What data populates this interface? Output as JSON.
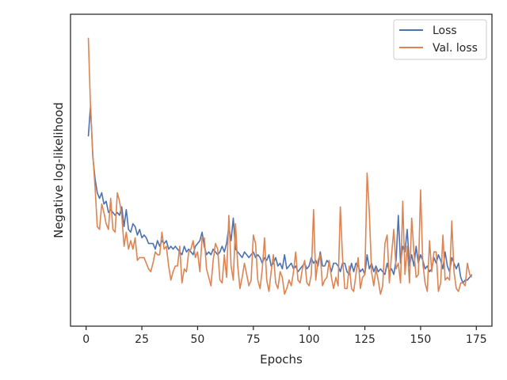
{
  "chart_data": {
    "type": "line",
    "xlabel": "Epochs",
    "ylabel": "Negative log-likelihood",
    "xlim": [
      -7,
      182
    ],
    "ylim": [
      0,
      100
    ],
    "xticks": [
      0,
      25,
      50,
      75,
      100,
      125,
      150,
      175
    ],
    "y_tick_labels": false,
    "grid": false,
    "legend_position": "top-right",
    "series": [
      {
        "name": "Loss",
        "color": "#4c72b0",
        "x": [
          1,
          2,
          3,
          4,
          5,
          6,
          7,
          8,
          9,
          10,
          11,
          12,
          13,
          14,
          15,
          16,
          17,
          18,
          19,
          20,
          21,
          22,
          23,
          24,
          25,
          26,
          27,
          28,
          29,
          30,
          31,
          32,
          33,
          34,
          35,
          36,
          37,
          38,
          39,
          40,
          41,
          42,
          43,
          44,
          45,
          46,
          47,
          48,
          49,
          50,
          51,
          52,
          53,
          54,
          55,
          56,
          57,
          58,
          59,
          60,
          61,
          62,
          63,
          64,
          65,
          66,
          67,
          68,
          69,
          70,
          71,
          72,
          73,
          74,
          75,
          76,
          77,
          78,
          79,
          80,
          81,
          82,
          83,
          84,
          85,
          86,
          87,
          88,
          89,
          90,
          91,
          92,
          93,
          94,
          95,
          96,
          97,
          98,
          99,
          100,
          101,
          102,
          103,
          104,
          105,
          106,
          107,
          108,
          109,
          110,
          111,
          112,
          113,
          114,
          115,
          116,
          117,
          118,
          119,
          120,
          121,
          122,
          123,
          124,
          125,
          126,
          127,
          128,
          129,
          130,
          131,
          132,
          133,
          134,
          135,
          136,
          137,
          138,
          139,
          140,
          141,
          142,
          143,
          144,
          145,
          146,
          147,
          148,
          149,
          150,
          151,
          152,
          153,
          154,
          155,
          156,
          157,
          158,
          159,
          160,
          161,
          162,
          163,
          164,
          165,
          166,
          167,
          168,
          169,
          170,
          171,
          172,
          173
        ],
        "y": [
          62,
          73,
          55,
          47,
          42,
          40,
          42,
          38,
          39,
          35,
          36,
          35,
          34,
          35,
          34,
          37,
          30,
          36,
          29,
          28,
          31,
          30,
          27,
          29,
          26,
          27,
          26,
          24,
          24,
          24,
          22,
          25,
          23,
          25,
          24,
          25,
          22,
          23,
          22,
          23,
          22,
          21,
          20,
          23,
          21,
          22,
          21,
          20,
          23,
          24,
          25,
          28,
          23,
          20,
          21,
          20,
          22,
          21,
          20,
          21,
          23,
          21,
          24,
          30,
          25,
          33,
          22,
          21,
          20,
          19,
          21,
          20,
          19,
          20,
          21,
          19,
          20,
          19,
          17,
          19,
          18,
          20,
          16,
          17,
          19,
          16,
          17,
          15,
          20,
          15,
          16,
          17,
          15,
          16,
          14,
          15,
          16,
          17,
          15,
          16,
          19,
          17,
          18,
          16,
          21,
          16,
          16,
          18,
          17,
          14,
          17,
          17,
          16,
          14,
          17,
          17,
          14,
          13,
          17,
          14,
          17,
          16,
          14,
          15,
          13,
          20,
          15,
          17,
          14,
          16,
          14,
          15,
          14,
          13,
          17,
          14,
          15,
          13,
          18,
          34,
          17,
          23,
          21,
          29,
          16,
          20,
          16,
          23,
          17,
          20,
          18,
          15,
          16,
          14,
          15,
          19,
          17,
          20,
          18,
          15,
          21,
          16,
          14,
          19,
          17,
          15,
          17,
          12,
          10,
          11,
          11,
          12,
          13
        ]
      },
      {
        "name": "Val. loss",
        "color": "#dd8452",
        "x": [
          1,
          2,
          3,
          4,
          5,
          6,
          7,
          8,
          9,
          10,
          11,
          12,
          13,
          14,
          15,
          16,
          17,
          18,
          19,
          20,
          21,
          22,
          23,
          24,
          25,
          26,
          27,
          28,
          29,
          30,
          31,
          32,
          33,
          34,
          35,
          36,
          37,
          38,
          39,
          40,
          41,
          42,
          43,
          44,
          45,
          46,
          47,
          48,
          49,
          50,
          51,
          52,
          53,
          54,
          55,
          56,
          57,
          58,
          59,
          60,
          61,
          62,
          63,
          64,
          65,
          66,
          67,
          68,
          69,
          70,
          71,
          72,
          73,
          74,
          75,
          76,
          77,
          78,
          79,
          80,
          81,
          82,
          83,
          84,
          85,
          86,
          87,
          88,
          89,
          90,
          91,
          92,
          93,
          94,
          95,
          96,
          97,
          98,
          99,
          100,
          101,
          102,
          103,
          104,
          105,
          106,
          107,
          108,
          109,
          110,
          111,
          112,
          113,
          114,
          115,
          116,
          117,
          118,
          119,
          120,
          121,
          122,
          123,
          124,
          125,
          126,
          127,
          128,
          129,
          130,
          131,
          132,
          133,
          134,
          135,
          136,
          137,
          138,
          139,
          140,
          141,
          142,
          143,
          144,
          145,
          146,
          147,
          148,
          149,
          150,
          151,
          152,
          153,
          154,
          155,
          156,
          157,
          158,
          159,
          160,
          161,
          162,
          163,
          164,
          165,
          166,
          167,
          168,
          169,
          170,
          171,
          172,
          173
        ],
        "y": [
          97,
          72,
          56,
          44,
          30,
          29,
          38,
          35,
          31,
          29,
          40,
          29,
          28,
          42,
          39,
          34,
          23,
          28,
          22,
          25,
          22,
          26,
          18,
          19,
          19,
          19,
          17,
          15,
          14,
          17,
          21,
          20,
          20,
          28,
          22,
          23,
          16,
          11,
          14,
          16,
          16,
          23,
          10,
          15,
          14,
          21,
          22,
          25,
          19,
          21,
          14,
          26,
          26,
          15,
          12,
          9,
          18,
          24,
          22,
          11,
          10,
          20,
          12,
          34,
          16,
          11,
          31,
          16,
          8,
          12,
          17,
          13,
          9,
          11,
          27,
          24,
          11,
          8,
          15,
          26,
          11,
          7,
          14,
          20,
          10,
          8,
          14,
          12,
          6,
          8,
          11,
          9,
          14,
          21,
          11,
          10,
          15,
          18,
          10,
          9,
          13,
          36,
          11,
          18,
          20,
          9,
          11,
          12,
          18,
          12,
          8,
          12,
          9,
          37,
          19,
          8,
          8,
          16,
          8,
          7,
          13,
          19,
          8,
          12,
          13,
          49,
          35,
          14,
          9,
          15,
          11,
          6,
          9,
          24,
          27,
          10,
          20,
          29,
          15,
          17,
          10,
          39,
          13,
          23,
          10,
          33,
          21,
          12,
          13,
          43,
          17,
          10,
          7,
          25,
          14,
          21,
          21,
          7,
          10,
          27,
          11,
          12,
          11,
          32,
          14,
          8,
          7,
          10,
          10,
          9,
          17,
          13,
          12
        ]
      }
    ]
  }
}
